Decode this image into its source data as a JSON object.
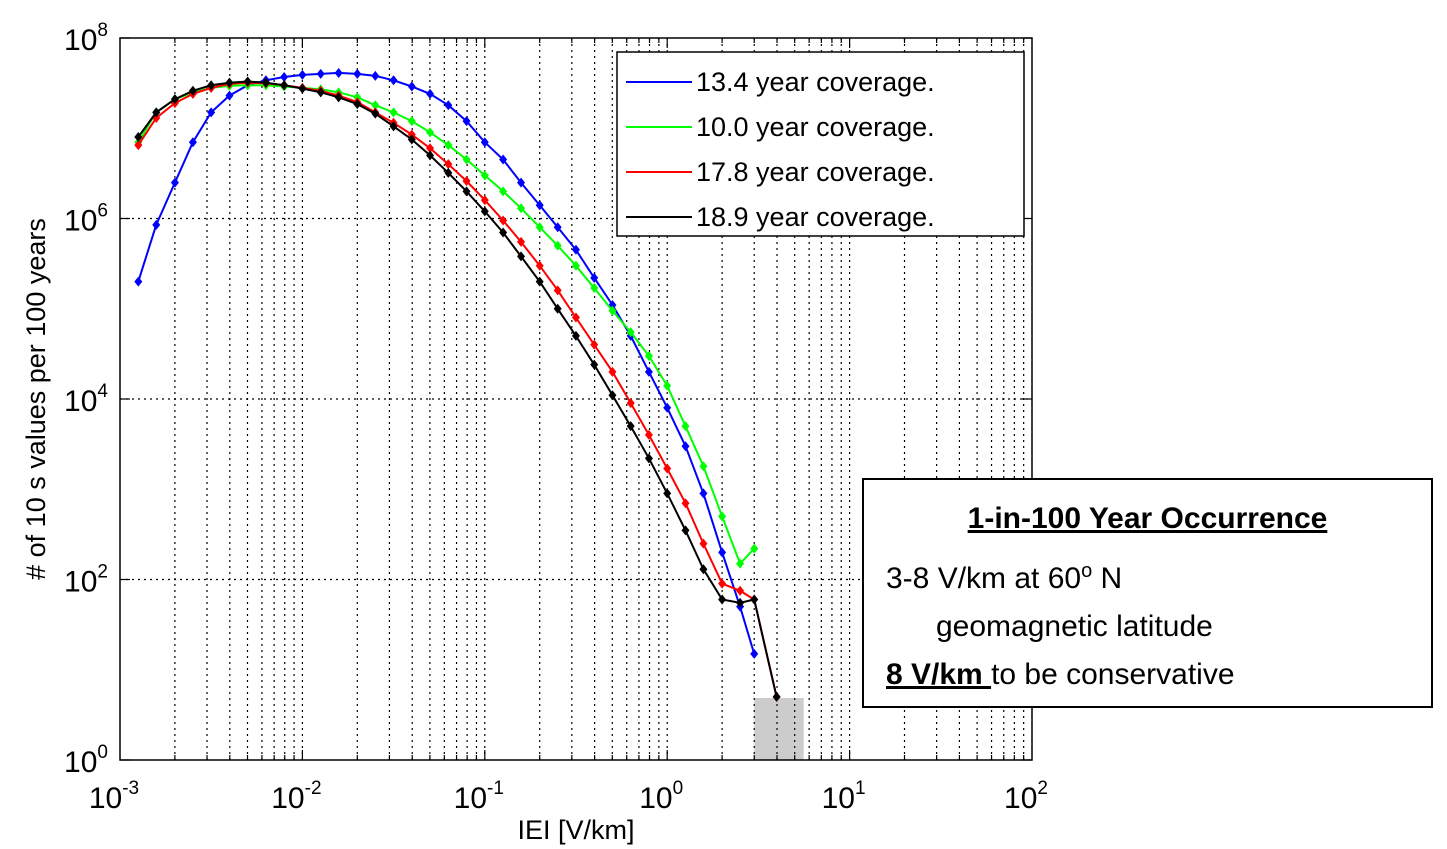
{
  "chart_data": {
    "type": "line",
    "xlabel": "IEI [V/km]",
    "ylabel": "# of 10 s values per 100 years",
    "xscale": "log",
    "yscale": "log",
    "xlim": [
      0.001,
      100
    ],
    "ylim": [
      1,
      100000000
    ],
    "x_ticks": [
      {
        "base": "10",
        "exp": "-3"
      },
      {
        "base": "10",
        "exp": "-2"
      },
      {
        "base": "10",
        "exp": "-1"
      },
      {
        "base": "10",
        "exp": "0"
      },
      {
        "base": "10",
        "exp": "1"
      },
      {
        "base": "10",
        "exp": "2"
      }
    ],
    "y_ticks": [
      {
        "base": "10",
        "exp": "0"
      },
      {
        "base": "10",
        "exp": "2"
      },
      {
        "base": "10",
        "exp": "4"
      },
      {
        "base": "10",
        "exp": "6"
      },
      {
        "base": "10",
        "exp": "8"
      }
    ],
    "grid": true,
    "legend_position": "top-right",
    "highlight_band": {
      "x": [
        3,
        5.6
      ],
      "color": "#cccccc"
    },
    "series": [
      {
        "name": "13.4 year coverage.",
        "color": "#0000ff",
        "x": [
          0.00126,
          0.00158,
          0.002,
          0.00251,
          0.00316,
          0.00398,
          0.00501,
          0.00631,
          0.00794,
          0.01,
          0.0126,
          0.0158,
          0.02,
          0.0251,
          0.0316,
          0.0398,
          0.0501,
          0.0631,
          0.0794,
          0.1,
          0.126,
          0.158,
          0.2,
          0.251,
          0.316,
          0.398,
          0.501,
          0.631,
          0.794,
          1.0,
          1.26,
          1.58,
          2.0,
          2.51,
          3.0
        ],
        "y": [
          200000,
          850000,
          2500000,
          7000000,
          15000000,
          23000000,
          30000000,
          34000000,
          37000000,
          39000000,
          40000000,
          41000000,
          40000000,
          38000000,
          34000000,
          29000000,
          24000000,
          18000000,
          12000000,
          7000000,
          4500000,
          2500000,
          1400000,
          800000,
          450000,
          220000,
          110000,
          50000,
          20000,
          8000,
          3000,
          900,
          200,
          50,
          15
        ]
      },
      {
        "name": "10.0 year coverage.",
        "color": "#00ff00",
        "x": [
          0.00126,
          0.00158,
          0.002,
          0.00251,
          0.00316,
          0.00398,
          0.00501,
          0.00631,
          0.00794,
          0.01,
          0.0126,
          0.0158,
          0.02,
          0.0251,
          0.0316,
          0.0398,
          0.0501,
          0.0631,
          0.0794,
          0.1,
          0.126,
          0.158,
          0.2,
          0.251,
          0.316,
          0.398,
          0.501,
          0.631,
          0.794,
          1.0,
          1.26,
          1.58,
          2.0,
          2.51,
          3.0
        ],
        "y": [
          7000000,
          15000000,
          21000000,
          25000000,
          28000000,
          29500000,
          30000000,
          30000000,
          29000000,
          28000000,
          27000000,
          25000000,
          22000000,
          18000000,
          15000000,
          12000000,
          9000000,
          6500000,
          4500000,
          3000000,
          2000000,
          1300000,
          800000,
          500000,
          300000,
          170000,
          95000,
          55000,
          30000,
          14000,
          5000,
          1800,
          500,
          150,
          220
        ]
      },
      {
        "name": "17.8 year coverage.",
        "color": "#ff0000",
        "x": [
          0.00126,
          0.00158,
          0.002,
          0.00251,
          0.00316,
          0.00398,
          0.00501,
          0.00631,
          0.00794,
          0.01,
          0.0126,
          0.0158,
          0.02,
          0.0251,
          0.0316,
          0.0398,
          0.0501,
          0.0631,
          0.0794,
          0.1,
          0.126,
          0.158,
          0.2,
          0.251,
          0.316,
          0.398,
          0.501,
          0.631,
          0.794,
          1.0,
          1.26,
          1.58,
          2.0,
          2.51,
          3.0,
          3.98
        ],
        "y": [
          6500000,
          13000000,
          19000000,
          24000000,
          28000000,
          31000000,
          32000000,
          31500000,
          30000000,
          28000000,
          26000000,
          23000000,
          19500000,
          15000000,
          11500000,
          8500000,
          6000000,
          4000000,
          2600000,
          1600000,
          950000,
          550000,
          300000,
          160000,
          80000,
          40000,
          20000,
          9000,
          4000,
          1700,
          700,
          250,
          90,
          75,
          60,
          5
        ]
      },
      {
        "name": "18.9 year coverage.",
        "color": "#000000",
        "x": [
          0.00126,
          0.00158,
          0.002,
          0.00251,
          0.00316,
          0.00398,
          0.00501,
          0.00631,
          0.00794,
          0.01,
          0.0126,
          0.0158,
          0.02,
          0.0251,
          0.0316,
          0.0398,
          0.0501,
          0.0631,
          0.0794,
          0.1,
          0.126,
          0.158,
          0.2,
          0.251,
          0.316,
          0.398,
          0.501,
          0.631,
          0.794,
          1.0,
          1.26,
          1.58,
          2.0,
          2.51,
          3.0,
          3.98
        ],
        "y": [
          8000000,
          15000000,
          21000000,
          26000000,
          30000000,
          32000000,
          33000000,
          32000000,
          30000000,
          27500000,
          25000000,
          22000000,
          18500000,
          14500000,
          10500000,
          7500000,
          5000000,
          3200000,
          2000000,
          1200000,
          700000,
          380000,
          200000,
          100000,
          50000,
          24000,
          11000,
          5000,
          2200,
          900,
          350,
          130,
          60,
          55,
          60,
          5
        ]
      }
    ]
  },
  "annotation": {
    "title": "1-in-100 Year Occurrence",
    "line1_prefix": "3-8 V/km at 60",
    "line1_sup": "o",
    "line1_suffix": " N",
    "line2": "geomagnetic latitude",
    "line3_bold": "8 V/km ",
    "line3_rest": "to be conservative"
  }
}
